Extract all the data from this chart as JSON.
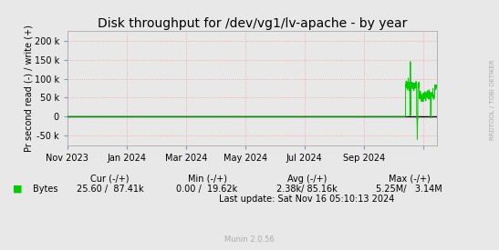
{
  "title": "Disk throughput for /dev/vg1/lv-apache - by year",
  "ylabel": "Pr second read (-) / write (+)",
  "background_color": "#e8e8e8",
  "plot_bg_color": "#e8e8e8",
  "grid_color_dot": "#ff9999",
  "line_color": "#00cc00",
  "zero_line_color": "#000000",
  "ylim": [
    -75000,
    225000
  ],
  "yticks": [
    -50000,
    0,
    50000,
    100000,
    150000,
    200000
  ],
  "ytick_labels": [
    "-50 k",
    "0",
    "50 k",
    "100 k",
    "150 k",
    "200 k"
  ],
  "xlim": [
    0,
    380
  ],
  "xtick_positions": [
    0,
    61,
    122,
    183,
    244,
    305,
    366
  ],
  "xtick_labels": [
    "Nov 2023",
    "Jan 2024",
    "Mar 2024",
    "May 2024",
    "Jul 2024",
    "Sep 2024",
    ""
  ],
  "legend_label": "Bytes",
  "cur_label": "Cur (-/+)",
  "cur_value": "25.60 /  87.41k",
  "min_label": "Min (-/+)",
  "min_value": "0.00 /  19.62k",
  "avg_label": "Avg (-/+)",
  "avg_value": "2.38k/ 85.16k",
  "max_label": "Max (-/+)",
  "max_value": "5.25M/   3.14M",
  "last_update": "Last update: Sat Nov 16 05:10:13 2024",
  "munin_version": "Munin 2.0.56",
  "rrdtool_label": "RRDTOOL / TOBI OETIKER",
  "title_fontsize": 10,
  "axis_fontsize": 7,
  "legend_fontsize": 7,
  "activity_start_day": 348,
  "spike_day": 353,
  "spike_value": 145000,
  "base_write": 82000,
  "base_noise": 6000,
  "neg_spike_day": 360,
  "neg_spike_value": -60000,
  "drop_day": 362,
  "drop_value": 55000,
  "end_day": 380
}
